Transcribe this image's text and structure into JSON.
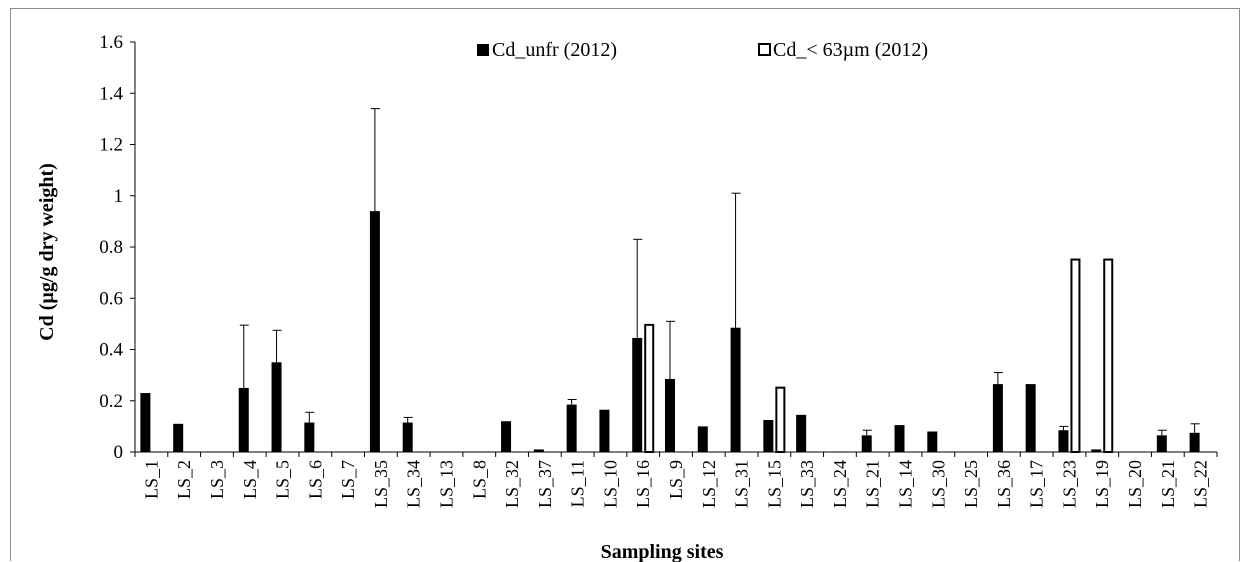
{
  "chart_data": {
    "type": "bar",
    "title": "",
    "xlabel": "Sampling sites",
    "ylabel": "Cd (µg/g dry weight)",
    "ylim": [
      0,
      1.6
    ],
    "yticks": [
      "0",
      "0.2",
      "0.4",
      "0.6",
      "0.8",
      "1",
      "1.2",
      "1.4",
      "1.6"
    ],
    "grid": false,
    "legend_position": "top-center",
    "categories": [
      "LS_1",
      "LS_2",
      "LS_3",
      "LS_4",
      "LS_5",
      "LS_6",
      "LS_7",
      "LS_35",
      "LS_34",
      "LS_13",
      "LS_8",
      "LS_32",
      "LS_37",
      "LS_11",
      "LS_10",
      "LS_16",
      "LS_9",
      "LS_12",
      "LS_31",
      "LS_15",
      "LS_33",
      "LS_24",
      "LS_21",
      "LS_14",
      "LS_30",
      "LS_25",
      "LS_36",
      "LS_17",
      "LS_23",
      "LS_19",
      "LS_20",
      "LS_21",
      "LS_22"
    ],
    "series": [
      {
        "name": "Cd_unfr (2012)",
        "color": "#000000",
        "style": "filled",
        "values": [
          0.23,
          0.11,
          0,
          0.25,
          0.35,
          0.115,
          0,
          0.94,
          0.115,
          0,
          0,
          0.12,
          0.01,
          0.185,
          0.165,
          0.445,
          0.285,
          0.1,
          0.485,
          0.125,
          0.145,
          0,
          0.065,
          0.105,
          0.08,
          0,
          0.265,
          0.265,
          0.085,
          0.01,
          0,
          0.065,
          0.075
        ],
        "error": [
          0,
          0,
          0,
          0.245,
          0.125,
          0.04,
          0,
          0.4,
          0.02,
          0,
          0,
          0,
          0,
          0.02,
          0,
          0.385,
          0.225,
          0,
          0.525,
          0,
          0,
          0,
          0.02,
          0,
          0,
          0,
          0.045,
          0,
          0.015,
          0,
          0,
          0.02,
          0.035
        ]
      },
      {
        "name": "Cd_< 63µm (2012)",
        "color": "#000000",
        "style": "hollow",
        "values": [
          0,
          0,
          0,
          0,
          0,
          0,
          0,
          0,
          0,
          0,
          0,
          0,
          0,
          0,
          0,
          0.5,
          0,
          0,
          0,
          0.255,
          0,
          0,
          0,
          0,
          0,
          0,
          0,
          0,
          0.755,
          0.755,
          0,
          0,
          0
        ],
        "error": [
          0,
          0,
          0,
          0,
          0,
          0,
          0,
          0,
          0,
          0,
          0,
          0,
          0,
          0,
          0,
          0,
          0,
          0,
          0,
          0,
          0,
          0,
          0,
          0,
          0,
          0,
          0,
          0,
          0,
          0,
          0,
          0,
          0
        ]
      }
    ]
  }
}
